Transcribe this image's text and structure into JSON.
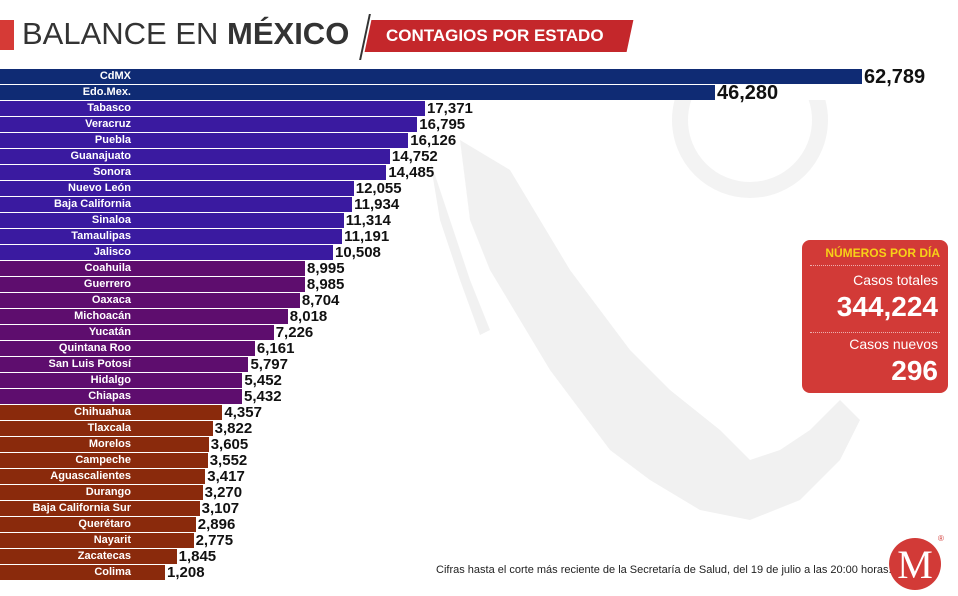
{
  "header": {
    "title_light": "BALANCE EN ",
    "title_bold": "MÉXICO",
    "subtitle": "CONTAGIOS POR ESTADO"
  },
  "colors": {
    "accent": "#d63a36",
    "ribbon": "#c4272b",
    "group_navy": "#0f2b74",
    "group_indigo": "#3a1aa0",
    "group_purple": "#5e0d6e",
    "group_brown": "#8a2a0c",
    "panel_bg": "#d23a37",
    "panel_header": "#f7d117"
  },
  "chart_data": {
    "type": "bar",
    "orientation": "horizontal",
    "title": "Contagios por estado",
    "xlabel": "",
    "ylabel": "",
    "grid": false,
    "categories": [
      "CdMX",
      "Edo.Mex.",
      "Tabasco",
      "Veracruz",
      "Puebla",
      "Guanajuato",
      "Sonora",
      "Nuevo León",
      "Baja California",
      "Sinaloa",
      "Tamaulipas",
      "Jalisco",
      "Coahuila",
      "Guerrero",
      "Oaxaca",
      "Michoacán",
      "Yucatán",
      "Quintana Roo",
      "San Luis Potosí",
      "Hidalgo",
      "Chiapas",
      "Chihuahua",
      "Tlaxcala",
      "Morelos",
      "Campeche",
      "Aguascalientes",
      "Durango",
      "Baja California Sur",
      "Querétaro",
      "Nayarit",
      "Zacatecas",
      "Colima"
    ],
    "values": [
      62789,
      46280,
      17371,
      16795,
      16126,
      14752,
      14485,
      12055,
      11934,
      11314,
      11191,
      10508,
      8995,
      8985,
      8704,
      8018,
      7226,
      6161,
      5797,
      5452,
      5432,
      4357,
      3822,
      3605,
      3552,
      3417,
      3270,
      3107,
      2896,
      2775,
      1845,
      1208
    ],
    "value_labels": [
      "62,789",
      "46,280",
      "17,371",
      "16,795",
      "16,126",
      "14,752",
      "14,485",
      "12,055",
      "11,934",
      "11,314",
      "11,191",
      "10,508",
      "8,995",
      "8,985",
      "8,704",
      "8,018",
      "7,226",
      "6,161",
      "5,797",
      "5,452",
      "5,432",
      "4,357",
      "3,822",
      "3,605",
      "3,552",
      "3,417",
      "3,270",
      "3,107",
      "2,896",
      "2,775",
      "1,845",
      "1,208"
    ],
    "color_groups": [
      "navy",
      "navy",
      "indigo",
      "indigo",
      "indigo",
      "indigo",
      "indigo",
      "indigo",
      "indigo",
      "indigo",
      "indigo",
      "indigo",
      "purple",
      "purple",
      "purple",
      "purple",
      "purple",
      "purple",
      "purple",
      "purple",
      "purple",
      "brown",
      "brown",
      "brown",
      "brown",
      "brown",
      "brown",
      "brown",
      "brown",
      "brown",
      "brown",
      "brown"
    ]
  },
  "panel": {
    "header": "NÚMEROS POR DÍA",
    "total_label": "Casos totales",
    "total_value": "344,224",
    "new_label": "Casos nuevos",
    "new_value": "296"
  },
  "footer": {
    "note": "Cifras hasta el corte más reciente de la Secretaría de Salud, del 19 de julio a las 20:00 horas."
  },
  "logo": {
    "letter": "M",
    "mark": "®"
  }
}
